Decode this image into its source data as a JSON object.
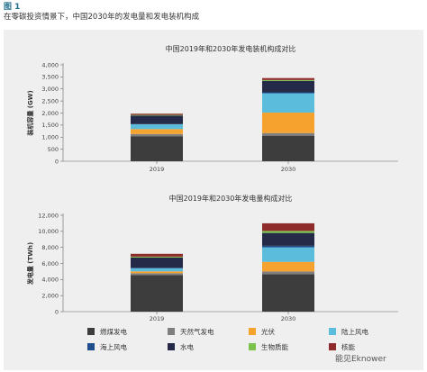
{
  "header": {
    "figure_label": "图 1",
    "caption": "在零碳投资情景下，中国2030年的发电量和发电装机构成"
  },
  "watermark": "能见Eknower",
  "legend": [
    {
      "name": "燃煤发电",
      "color": "#3d3d3d"
    },
    {
      "name": "天然气发电",
      "color": "#7f7f7f"
    },
    {
      "name": "光伏",
      "color": "#f5a22e"
    },
    {
      "name": "陆上风电",
      "color": "#5bbcdc"
    },
    {
      "name": "海上风电",
      "color": "#1e4f8c"
    },
    {
      "name": "水电",
      "color": "#242a47"
    },
    {
      "name": "生物质能",
      "color": "#7dc24f"
    },
    {
      "name": "核能",
      "color": "#8f2b2b"
    }
  ],
  "chart_data": [
    {
      "type": "bar",
      "stacked": true,
      "title": "中国2019年和2030年发电装机构成对比",
      "ylabel": "装机容量 (GW)",
      "categories": [
        "2019",
        "2030"
      ],
      "ylim": [
        0,
        4000
      ],
      "yticks": [
        "0",
        "500",
        "1,000",
        "1,500",
        "2,000",
        "2,500",
        "3,000",
        "3,500",
        "4,000"
      ],
      "ytick_values": [
        0,
        500,
        1000,
        1500,
        2000,
        2500,
        3000,
        3500,
        4000
      ],
      "series": [
        {
          "name": "燃煤发电",
          "values": [
            1040,
            1060
          ]
        },
        {
          "name": "天然气发电",
          "values": [
            90,
            110
          ]
        },
        {
          "name": "光伏",
          "values": [
            205,
            850
          ]
        },
        {
          "name": "陆上风电",
          "values": [
            200,
            800
          ]
        },
        {
          "name": "海上风电",
          "values": [
            7,
            40
          ]
        },
        {
          "name": "水电",
          "values": [
            355,
            470
          ]
        },
        {
          "name": "生物质能",
          "values": [
            25,
            40
          ]
        },
        {
          "name": "核能",
          "values": [
            50,
            80
          ]
        }
      ]
    },
    {
      "type": "bar",
      "stacked": true,
      "title": "中国2019年和2030年发电量构成对比",
      "ylabel": "发电量 (TWh)",
      "categories": [
        "2019",
        "2030"
      ],
      "ylim": [
        0,
        12000
      ],
      "yticks": [
        "0",
        "2,000",
        "4,000",
        "6,000",
        "8,000",
        "10,000",
        "12,000"
      ],
      "ytick_values": [
        0,
        2000,
        4000,
        6000,
        8000,
        10000,
        12000
      ],
      "series": [
        {
          "name": "燃煤发电",
          "values": [
            4550,
            4650
          ]
        },
        {
          "name": "天然气发电",
          "values": [
            240,
            350
          ]
        },
        {
          "name": "光伏",
          "values": [
            225,
            1200
          ]
        },
        {
          "name": "陆上风电",
          "values": [
            400,
            1800
          ]
        },
        {
          "name": "海上风电",
          "values": [
            25,
            200
          ]
        },
        {
          "name": "水电",
          "values": [
            1300,
            1600
          ]
        },
        {
          "name": "生物质能",
          "values": [
            110,
            250
          ]
        },
        {
          "name": "核能",
          "values": [
            350,
            950
          ]
        }
      ]
    }
  ]
}
